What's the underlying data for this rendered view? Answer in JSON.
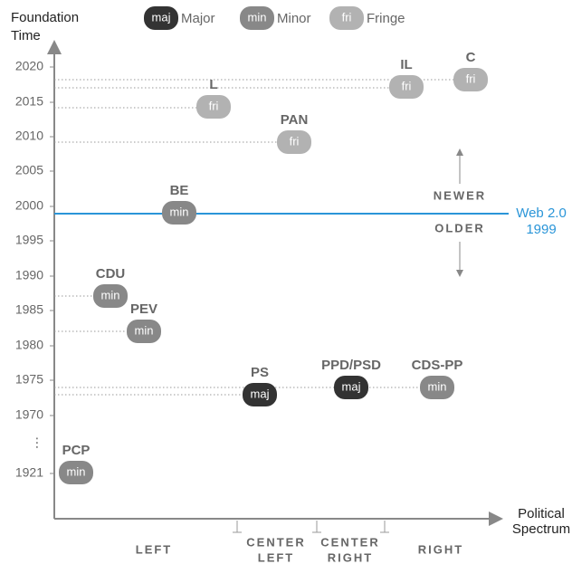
{
  "legend": [
    {
      "tag": "maj",
      "label": "Major"
    },
    {
      "tag": "min",
      "label": "Minor"
    },
    {
      "tag": "fri",
      "label": "Fringe"
    }
  ],
  "y_axis": {
    "title": [
      "Foundation",
      "Time"
    ],
    "ticks": [
      "2020",
      "2015",
      "2010",
      "2005",
      "2000",
      "1995",
      "1990",
      "1985",
      "1980",
      "1975",
      "1970",
      "⋮",
      "1921"
    ]
  },
  "x_axis": {
    "title": [
      "Political",
      "Spectrum"
    ],
    "categories": [
      [
        "LEFT"
      ],
      [
        "CENTER",
        "LEFT"
      ],
      [
        "CENTER",
        "RIGHT"
      ],
      [
        "RIGHT"
      ]
    ]
  },
  "nodes": [
    {
      "label": "L",
      "tag": "fri"
    },
    {
      "label": "PAN",
      "tag": "fri"
    },
    {
      "label": "IL",
      "tag": "fri"
    },
    {
      "label": "C",
      "tag": "fri"
    },
    {
      "label": "BE",
      "tag": "min"
    },
    {
      "label": "CDU",
      "tag": "min"
    },
    {
      "label": "PEV",
      "tag": "min"
    },
    {
      "label": "PS",
      "tag": "maj"
    },
    {
      "label": "PPD/PSD",
      "tag": "maj"
    },
    {
      "label": "CDS-PP",
      "tag": "min"
    },
    {
      "label": "PCP",
      "tag": "min"
    }
  ],
  "annotation": {
    "line": [
      "Web 2.0",
      "1999"
    ],
    "newer": "NEWER",
    "older": "OLDER"
  }
}
